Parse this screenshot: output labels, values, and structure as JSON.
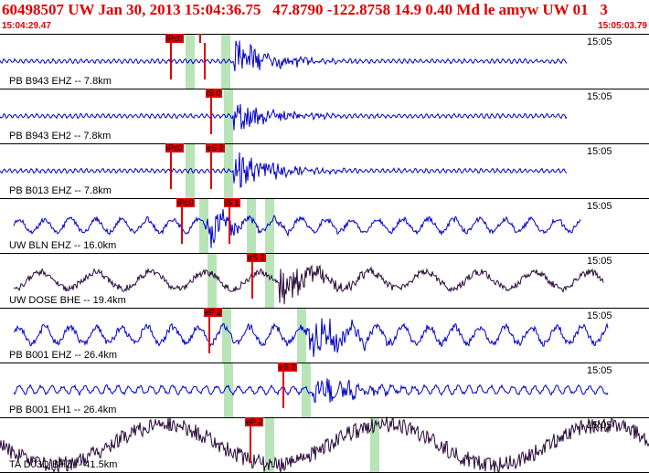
{
  "header": {
    "title": "60498507 UW Jan 30, 2013 15:04:36.75   47.8790 -122.8758 14.9 0.40 Md le amyw UW 01   3",
    "start_time": "15:04:29.47",
    "end_time": "15:05:03.79"
  },
  "colors": {
    "trace": "#0000cc",
    "trace_dark": "#2a0a3a",
    "pick": "#e00000",
    "window": "#b8e4b8",
    "header_text": "#e00000"
  },
  "traces": [
    {
      "label": "PB B943 EHZ -- 7.8km",
      "time": "15:05",
      "picks": [
        "iPc0",
        ""
      ]
    },
    {
      "label": "PB B943 EH2 -- 7.8km",
      "time": "15:05",
      "picks": [
        "iS 0"
      ]
    },
    {
      "label": "PB B013 EHZ -- 7.8km",
      "time": "15:05",
      "picks": [
        "iPc0",
        "eS 2"
      ]
    },
    {
      "label": "UW BLN EHZ -- 16.0km",
      "time": "15:05",
      "picks": [
        "iPc0",
        "iS 1"
      ]
    },
    {
      "label": "UW DOSE BHE -- 19.4km",
      "time": "15:05",
      "picks": [
        "eS 2"
      ]
    },
    {
      "label": "PB B001 EHZ -- 26.4km",
      "time": "15:05",
      "picks": [
        "eP 2"
      ]
    },
    {
      "label": "PB B001 EH1 -- 26.4km",
      "time": "15:05",
      "picks": [
        "eS 2"
      ]
    },
    {
      "label": "TA D03D BHZ -- 41.5km",
      "time": "15:05",
      "picks": [
        "eP 2"
      ]
    }
  ]
}
